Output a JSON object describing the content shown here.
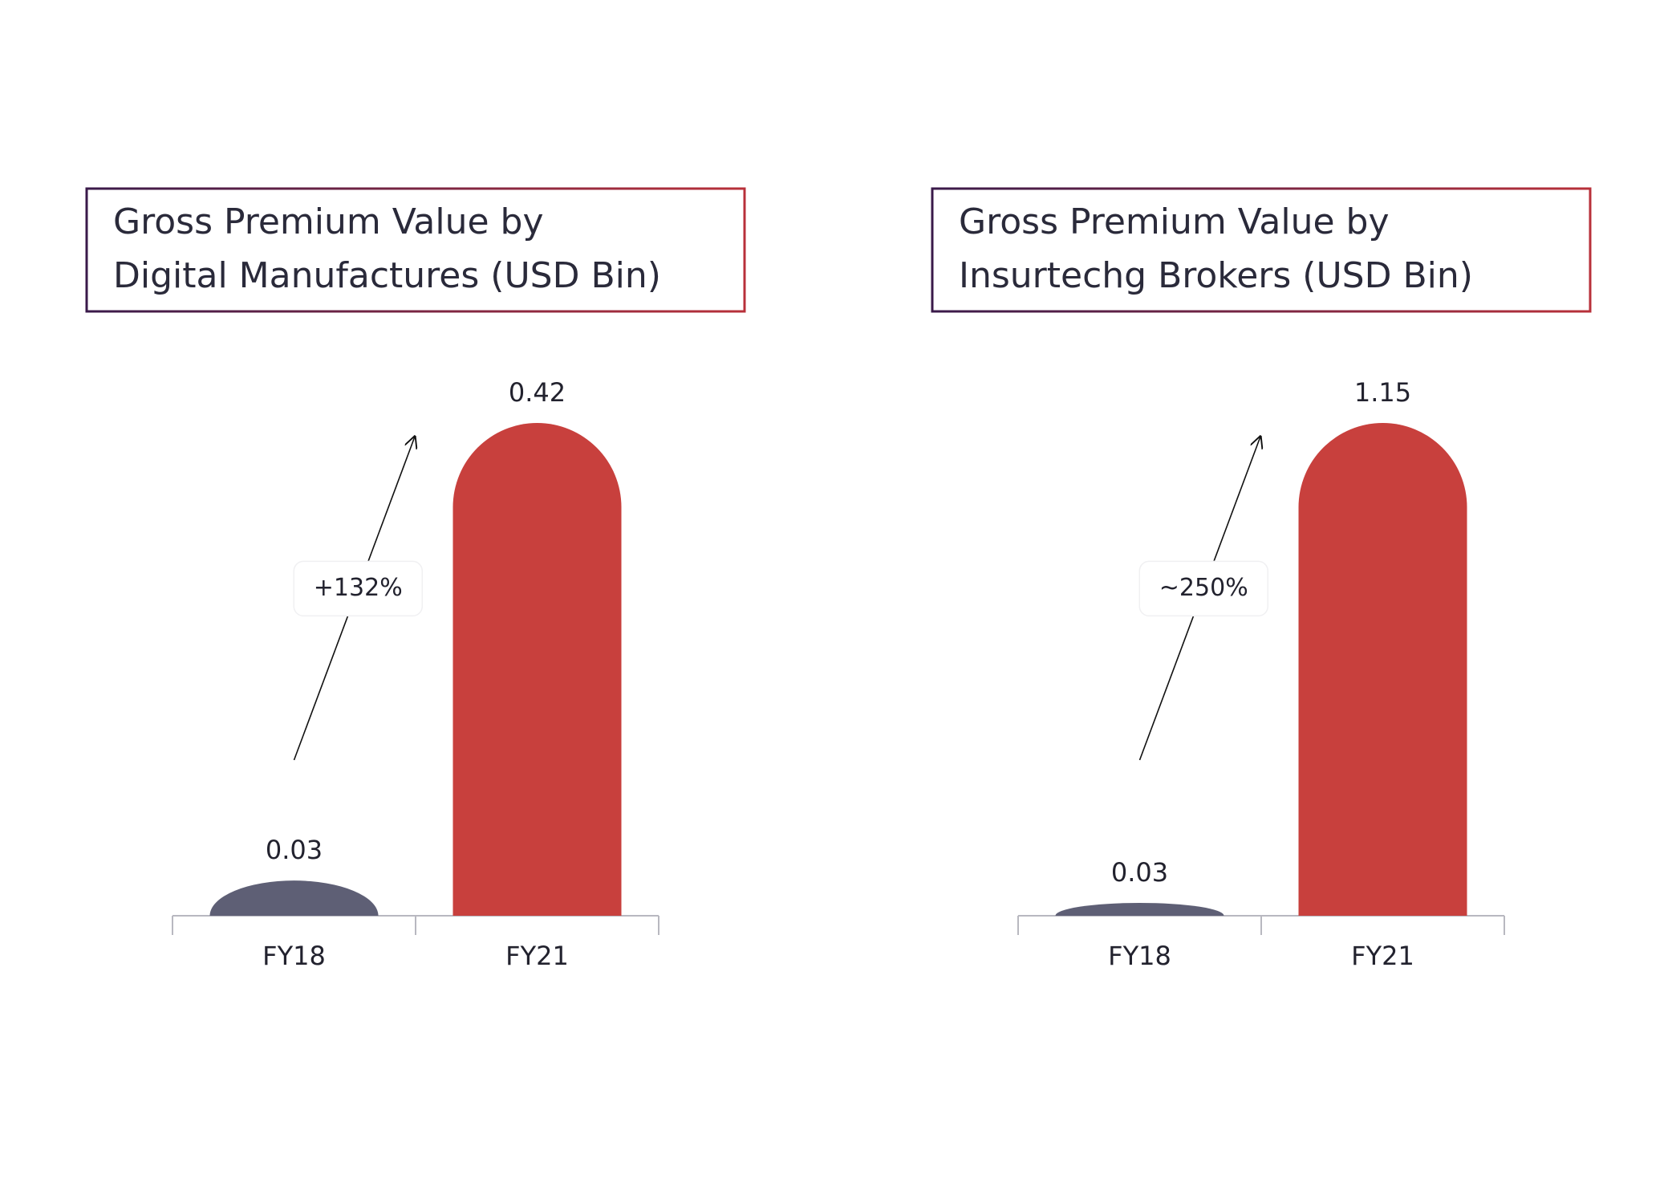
{
  "chart_data": [
    {
      "type": "bar",
      "title": [
        "Gross Premium Value by",
        "Digital Manufactures (USD Bin)"
      ],
      "categories": [
        "FY18",
        "FY21"
      ],
      "values": [
        0.03,
        0.42
      ],
      "colors": [
        "#5e5f75",
        "#c8403d"
      ],
      "annotation": "+132%"
    },
    {
      "type": "bar",
      "title": [
        "Gross Premium Value by",
        "Insurtechg Brokers (USD Bin)"
      ],
      "categories": [
        "FY18",
        "FY21"
      ],
      "values": [
        0.03,
        1.15
      ],
      "colors": [
        "#5e5f75",
        "#c8403d"
      ],
      "annotation": "~250%"
    }
  ]
}
